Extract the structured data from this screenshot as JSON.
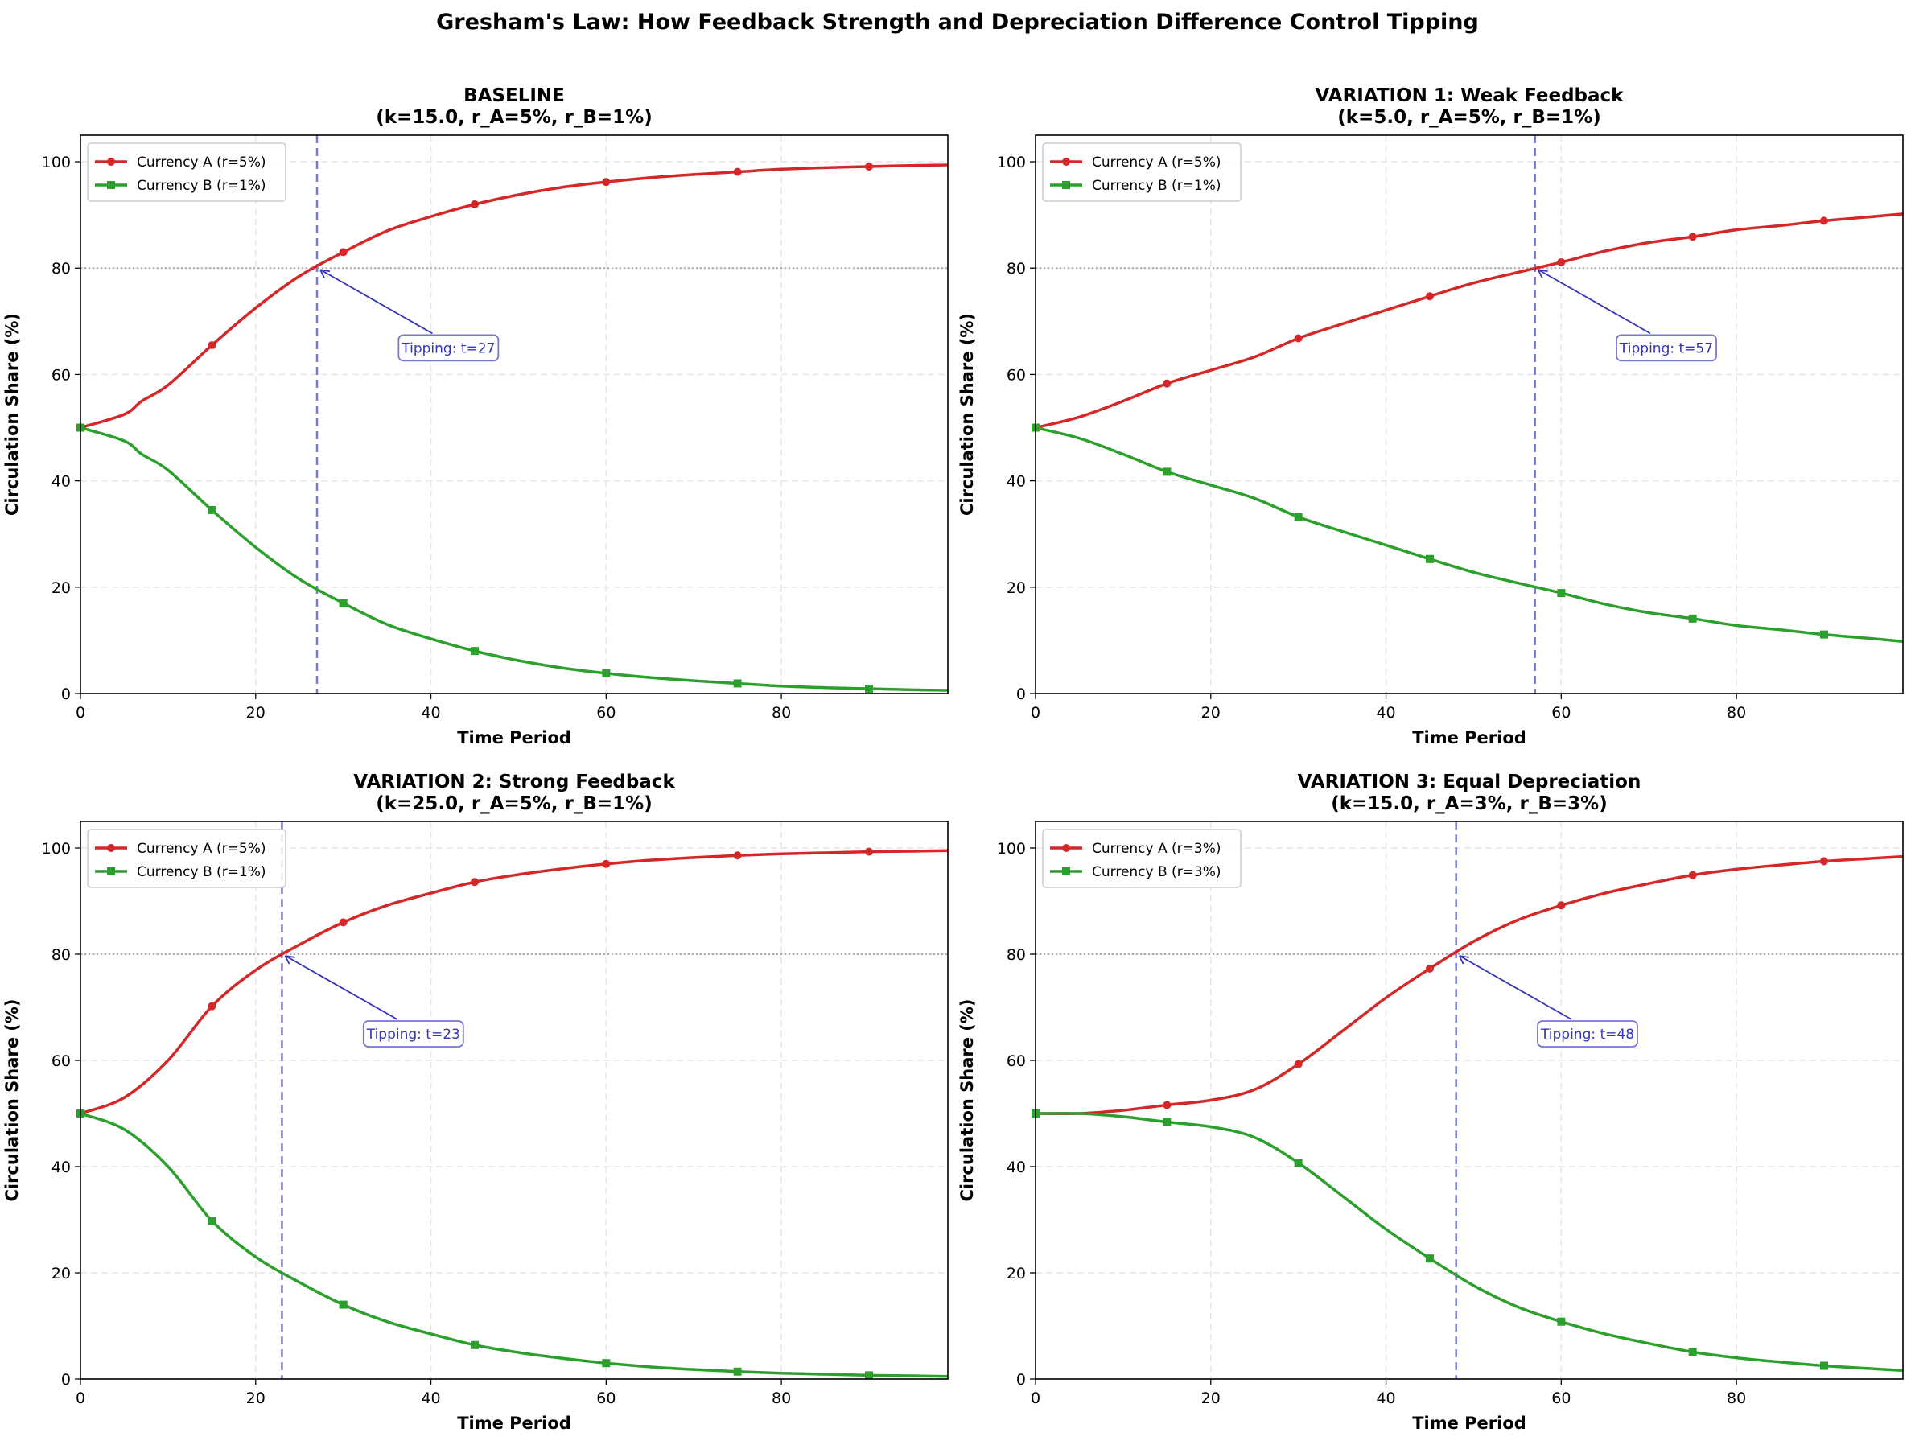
{
  "figure_title": "Gresham's Law: How Feedback Strength and Depreciation Difference Control Tipping",
  "colors": {
    "currency_a": "#d62728",
    "currency_b": "#2ca02c",
    "tipping_line": "#7777d0",
    "annotation": "#3333bb",
    "threshold": "#aaaaaa",
    "grid": "#e6e6e6"
  },
  "chart_data": [
    {
      "type": "line",
      "title_line1": "BASELINE",
      "title_line2": "(k=15.0, r_A=5%, r_B=1%)",
      "xlabel": "Time Period",
      "ylabel": "Circulation Share (%)",
      "xlim": [
        0,
        99
      ],
      "ylim": [
        0,
        105
      ],
      "xticks": [
        0,
        20,
        40,
        60,
        80
      ],
      "yticks": [
        0,
        20,
        40,
        60,
        80,
        100
      ],
      "grid": true,
      "legend_position": "top-left",
      "threshold": 80,
      "tipping_t": 27,
      "annotation": "Tipping: t=27",
      "x": [
        0,
        5,
        7,
        10,
        15,
        20,
        25,
        30,
        35,
        40,
        45,
        50,
        55,
        60,
        65,
        70,
        75,
        80,
        85,
        90,
        95,
        99
      ],
      "series": [
        {
          "name": "Currency A (r=5%)",
          "marker": "circle",
          "values": [
            50,
            52.5,
            55,
            58,
            65.5,
            72.5,
            78.5,
            83,
            87,
            89.7,
            92,
            93.8,
            95.2,
            96.2,
            97,
            97.6,
            98.1,
            98.6,
            98.9,
            99.1,
            99.3,
            99.4
          ]
        },
        {
          "name": "Currency B (r=1%)",
          "marker": "square",
          "values": [
            50,
            47.5,
            45,
            42,
            34.5,
            27.5,
            21.5,
            17,
            13,
            10.3,
            8,
            6.2,
            4.8,
            3.8,
            3,
            2.4,
            1.9,
            1.4,
            1.1,
            0.9,
            0.7,
            0.6
          ]
        }
      ]
    },
    {
      "type": "line",
      "title_line1": "VARIATION 1: Weak Feedback",
      "title_line2": "(k=5.0, r_A=5%, r_B=1%)",
      "xlabel": "Time Period",
      "ylabel": "Circulation Share (%)",
      "xlim": [
        0,
        99
      ],
      "ylim": [
        0,
        105
      ],
      "xticks": [
        0,
        20,
        40,
        60,
        80
      ],
      "yticks": [
        0,
        20,
        40,
        60,
        80,
        100
      ],
      "grid": true,
      "legend_position": "top-left",
      "threshold": 80,
      "tipping_t": 57,
      "annotation": "Tipping: t=57",
      "x": [
        0,
        5,
        10,
        15,
        20,
        25,
        30,
        35,
        40,
        45,
        50,
        55,
        60,
        65,
        70,
        75,
        80,
        85,
        90,
        95,
        99
      ],
      "series": [
        {
          "name": "Currency A (r=5%)",
          "marker": "circle",
          "values": [
            50,
            52,
            55,
            58.3,
            60.8,
            63.3,
            66.8,
            69.5,
            72.1,
            74.7,
            77.2,
            79.2,
            81.1,
            83.2,
            84.8,
            85.9,
            87.2,
            88,
            88.9,
            89.6,
            90.2
          ]
        },
        {
          "name": "Currency B (r=1%)",
          "marker": "square",
          "values": [
            50,
            48,
            45,
            41.7,
            39.2,
            36.7,
            33.2,
            30.5,
            27.9,
            25.3,
            22.8,
            20.8,
            18.9,
            16.8,
            15.2,
            14.1,
            12.8,
            12,
            11.1,
            10.4,
            9.8
          ]
        }
      ]
    },
    {
      "type": "line",
      "title_line1": "VARIATION 2: Strong Feedback",
      "title_line2": "(k=25.0, r_A=5%, r_B=1%)",
      "xlabel": "Time Period",
      "ylabel": "Circulation Share (%)",
      "xlim": [
        0,
        99
      ],
      "ylim": [
        0,
        105
      ],
      "xticks": [
        0,
        20,
        40,
        60,
        80
      ],
      "yticks": [
        0,
        20,
        40,
        60,
        80,
        100
      ],
      "grid": true,
      "legend_position": "top-left",
      "threshold": 80,
      "tipping_t": 23,
      "annotation": "Tipping: t=23",
      "x": [
        0,
        5,
        10,
        15,
        20,
        25,
        30,
        35,
        40,
        45,
        50,
        55,
        60,
        65,
        70,
        75,
        80,
        85,
        90,
        95,
        99
      ],
      "series": [
        {
          "name": "Currency A (r=5%)",
          "marker": "circle",
          "values": [
            50,
            53,
            60,
            70.2,
            77,
            81.8,
            86,
            89.2,
            91.5,
            93.6,
            95,
            96.1,
            97,
            97.7,
            98.2,
            98.6,
            98.9,
            99.1,
            99.3,
            99.4,
            99.5
          ]
        },
        {
          "name": "Currency B (r=1%)",
          "marker": "square",
          "values": [
            50,
            47,
            40,
            29.8,
            23,
            18.2,
            14,
            10.8,
            8.5,
            6.4,
            5,
            3.9,
            3,
            2.3,
            1.8,
            1.4,
            1.1,
            0.9,
            0.7,
            0.6,
            0.5
          ]
        }
      ]
    },
    {
      "type": "line",
      "title_line1": "VARIATION 3: Equal Depreciation",
      "title_line2": "(k=15.0, r_A=3%, r_B=3%)",
      "xlabel": "Time Period",
      "ylabel": "Circulation Share (%)",
      "xlim": [
        0,
        99
      ],
      "ylim": [
        0,
        105
      ],
      "xticks": [
        0,
        20,
        40,
        60,
        80
      ],
      "yticks": [
        0,
        20,
        40,
        60,
        80,
        100
      ],
      "grid": true,
      "legend_position": "top-left",
      "threshold": 80,
      "tipping_t": 48,
      "annotation": "Tipping: t=48",
      "x": [
        0,
        5,
        10,
        15,
        20,
        25,
        30,
        35,
        40,
        45,
        50,
        55,
        60,
        65,
        70,
        75,
        80,
        85,
        90,
        95,
        99
      ],
      "series": [
        {
          "name": "Currency A (r=3%)",
          "marker": "circle",
          "values": [
            50,
            50,
            50.6,
            51.6,
            52.5,
            54.5,
            59.3,
            65.5,
            71.8,
            77.3,
            82.4,
            86.4,
            89.2,
            91.5,
            93.3,
            94.9,
            96,
            96.8,
            97.5,
            98,
            98.4
          ]
        },
        {
          "name": "Currency B (r=3%)",
          "marker": "square",
          "values": [
            50,
            50,
            49.4,
            48.4,
            47.5,
            45.5,
            40.7,
            34.5,
            28.2,
            22.7,
            17.6,
            13.6,
            10.8,
            8.5,
            6.7,
            5.1,
            4,
            3.2,
            2.5,
            2,
            1.6
          ]
        }
      ]
    }
  ]
}
